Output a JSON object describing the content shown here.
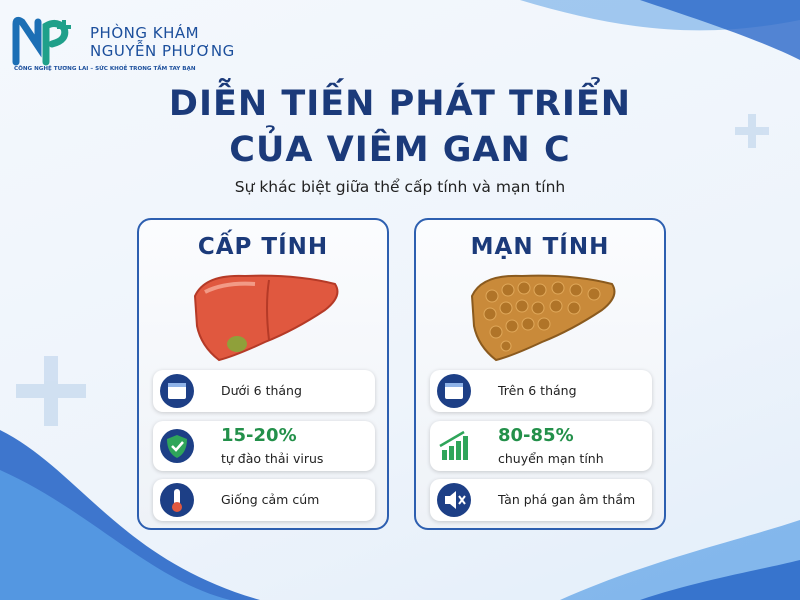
{
  "logo": {
    "name_line1": "PHÒNG KHÁM",
    "name_line2": "NGUYỄN PHƯƠNG",
    "tagline": "CÔNG NGHỆ TƯƠNG LAI – SỨC KHOẺ TRONG TẦM TAY BẠN"
  },
  "header": {
    "title_line1": "DIỄN TIẾN PHÁT TRIỂN",
    "title_line2": "CỦA VIÊM GAN C",
    "subtitle": "Sự khác biệt giữa thể cấp tính và mạn tính"
  },
  "cards": [
    {
      "title": "CẤP TÍNH",
      "items": [
        {
          "text": "Dưới 6 tháng"
        },
        {
          "highlight": "15-20%",
          "text": "tự đào thải virus"
        },
        {
          "text": "Giống cảm cúm"
        }
      ]
    },
    {
      "title": "MẠN TÍNH",
      "items": [
        {
          "text": "Trên 6 tháng"
        },
        {
          "highlight": "80-85%",
          "text": "chuyển mạn tính"
        },
        {
          "text": "Tàn phá gan âm thầm"
        }
      ]
    }
  ]
}
